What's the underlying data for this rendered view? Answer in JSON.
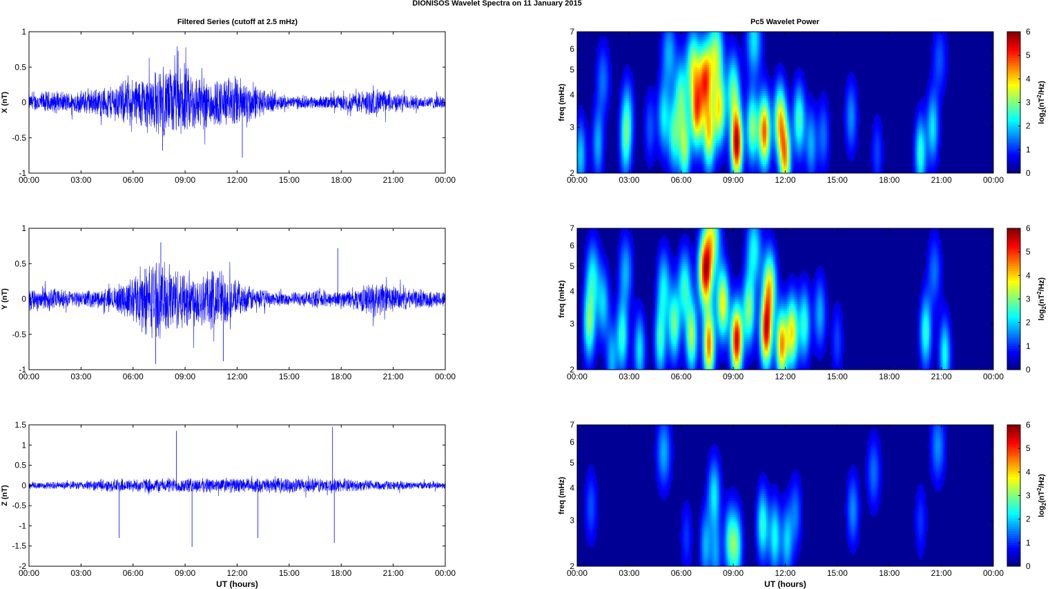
{
  "suptitle": "DIONISOS Wavelet Spectra on 11 January   2015",
  "left_title": "Filtered Series (cutoff at 2.5 mHz)",
  "right_title": "Pc5 Wavelet Power",
  "x_tick_labels": [
    "00:00",
    "03:00",
    "06:00",
    "09:00",
    "12:00",
    "15:00",
    "18:00",
    "21:00",
    "00:00"
  ],
  "xlabel": "UT (hours)",
  "freq_label": "freq (mHz)",
  "colorbar_label": "log2(nT2/Hz)",
  "colorbar_ticks": [
    "0",
    "1",
    "2",
    "3",
    "4",
    "5",
    "6"
  ],
  "chart_data": [
    {
      "type": "line",
      "panel": "X",
      "ylabel": "X (nT)",
      "x_unit": "hours UT",
      "xlim": [
        0,
        24
      ],
      "ylim": [
        -1,
        1
      ],
      "y_ticks": [
        "-1",
        "-0.5",
        "0",
        "0.5",
        "1"
      ],
      "line_color": "#0000ff",
      "envelope": [
        {
          "t": 0,
          "amp": 0.12
        },
        {
          "t": 1,
          "amp": 0.18
        },
        {
          "t": 2,
          "amp": 0.16
        },
        {
          "t": 3,
          "amp": 0.18
        },
        {
          "t": 4,
          "amp": 0.22
        },
        {
          "t": 5,
          "amp": 0.3
        },
        {
          "t": 6,
          "amp": 0.38
        },
        {
          "t": 7,
          "amp": 0.48
        },
        {
          "t": 8,
          "amp": 0.55
        },
        {
          "t": 9,
          "amp": 0.55
        },
        {
          "t": 10,
          "amp": 0.42
        },
        {
          "t": 11,
          "amp": 0.38
        },
        {
          "t": 12,
          "amp": 0.42
        },
        {
          "t": 13,
          "amp": 0.28
        },
        {
          "t": 14,
          "amp": 0.15
        },
        {
          "t": 15,
          "amp": 0.1
        },
        {
          "t": 16,
          "amp": 0.1
        },
        {
          "t": 17,
          "amp": 0.1
        },
        {
          "t": 18,
          "amp": 0.12
        },
        {
          "t": 19,
          "amp": 0.18
        },
        {
          "t": 20,
          "amp": 0.22
        },
        {
          "t": 21,
          "amp": 0.15
        },
        {
          "t": 22,
          "amp": 0.12
        },
        {
          "t": 23,
          "amp": 0.1
        },
        {
          "t": 24,
          "amp": 0.1
        }
      ],
      "peaks": [
        {
          "t": 8.6,
          "y": 0.73
        },
        {
          "t": 12.3,
          "y": -0.78
        },
        {
          "t": 7.7,
          "y": -0.68
        }
      ]
    },
    {
      "type": "line",
      "panel": "Y",
      "ylabel": "Y (nT)",
      "x_unit": "hours UT",
      "xlim": [
        0,
        24
      ],
      "ylim": [
        -1,
        1
      ],
      "y_ticks": [
        "-1",
        "-0.5",
        "0",
        "0.5",
        "1"
      ],
      "line_color": "#0000ff",
      "envelope": [
        {
          "t": 0,
          "amp": 0.18
        },
        {
          "t": 1,
          "amp": 0.2
        },
        {
          "t": 2,
          "amp": 0.14
        },
        {
          "t": 3,
          "amp": 0.12
        },
        {
          "t": 4,
          "amp": 0.14
        },
        {
          "t": 5,
          "amp": 0.2
        },
        {
          "t": 6,
          "amp": 0.35
        },
        {
          "t": 7,
          "amp": 0.6
        },
        {
          "t": 8,
          "amp": 0.55
        },
        {
          "t": 9,
          "amp": 0.45
        },
        {
          "t": 10,
          "amp": 0.45
        },
        {
          "t": 11,
          "amp": 0.5
        },
        {
          "t": 12,
          "amp": 0.25
        },
        {
          "t": 13,
          "amp": 0.18
        },
        {
          "t": 14,
          "amp": 0.12
        },
        {
          "t": 15,
          "amp": 0.1
        },
        {
          "t": 16,
          "amp": 0.12
        },
        {
          "t": 17,
          "amp": 0.14
        },
        {
          "t": 18,
          "amp": 0.12
        },
        {
          "t": 19,
          "amp": 0.18
        },
        {
          "t": 20,
          "amp": 0.28
        },
        {
          "t": 21,
          "amp": 0.2
        },
        {
          "t": 22,
          "amp": 0.15
        },
        {
          "t": 23,
          "amp": 0.14
        },
        {
          "t": 24,
          "amp": 0.12
        }
      ],
      "peaks": [
        {
          "t": 7.3,
          "y": -0.92
        },
        {
          "t": 7.6,
          "y": 0.8
        },
        {
          "t": 11.2,
          "y": -0.88
        },
        {
          "t": 17.8,
          "y": 0.72
        }
      ]
    },
    {
      "type": "line",
      "panel": "Z",
      "ylabel": "Z (nT)",
      "xlabel": "UT (hours)",
      "x_unit": "hours UT",
      "xlim": [
        0,
        24
      ],
      "ylim": [
        -2,
        1.5
      ],
      "y_ticks": [
        "-2",
        "-1.5",
        "-1",
        "-0.5",
        "0",
        "0.5",
        "1",
        "1.5"
      ],
      "line_color": "#0000ff",
      "envelope": [
        {
          "t": 0,
          "amp": 0.12
        },
        {
          "t": 1,
          "amp": 0.1
        },
        {
          "t": 2,
          "amp": 0.1
        },
        {
          "t": 3,
          "amp": 0.12
        },
        {
          "t": 4,
          "amp": 0.15
        },
        {
          "t": 5,
          "amp": 0.18
        },
        {
          "t": 6,
          "amp": 0.18
        },
        {
          "t": 7,
          "amp": 0.2
        },
        {
          "t": 8,
          "amp": 0.2
        },
        {
          "t": 9,
          "amp": 0.2
        },
        {
          "t": 10,
          "amp": 0.2
        },
        {
          "t": 11,
          "amp": 0.2
        },
        {
          "t": 12,
          "amp": 0.2
        },
        {
          "t": 13,
          "amp": 0.2
        },
        {
          "t": 14,
          "amp": 0.2
        },
        {
          "t": 15,
          "amp": 0.2
        },
        {
          "t": 16,
          "amp": 0.2
        },
        {
          "t": 17,
          "amp": 0.2
        },
        {
          "t": 18,
          "amp": 0.18
        },
        {
          "t": 19,
          "amp": 0.15
        },
        {
          "t": 20,
          "amp": 0.15
        },
        {
          "t": 21,
          "amp": 0.12
        },
        {
          "t": 22,
          "amp": 0.1
        },
        {
          "t": 23,
          "amp": 0.1
        },
        {
          "t": 24,
          "amp": 0.1
        }
      ],
      "peaks": [
        {
          "t": 8.5,
          "y": 1.35
        },
        {
          "t": 9.4,
          "y": -1.52
        },
        {
          "t": 17.5,
          "y": 1.45
        },
        {
          "t": 17.6,
          "y": -1.42
        },
        {
          "t": 5.2,
          "y": -1.3
        },
        {
          "t": 13.2,
          "y": -1.3
        }
      ]
    },
    {
      "type": "heatmap",
      "panel": "X power",
      "ylabel": "freq (mHz)",
      "xlim": [
        0,
        24
      ],
      "ylim": [
        2,
        7
      ],
      "y_scale": "log",
      "y_ticks": [
        "2",
        "3",
        "4",
        "5",
        "6",
        "7"
      ],
      "zlim": [
        0,
        6
      ],
      "colormap": "jet",
      "blobs": [
        {
          "t": 0.2,
          "f": 2.35,
          "p": 1.8
        },
        {
          "t": 1.2,
          "f": 2.6,
          "p": 1.6
        },
        {
          "t": 1.5,
          "f": 4.6,
          "p": 1.2
        },
        {
          "t": 2.8,
          "f": 2.6,
          "p": 2.0
        },
        {
          "t": 2.9,
          "f": 3.4,
          "p": 1.6
        },
        {
          "t": 4.2,
          "f": 3.0,
          "p": 1.0
        },
        {
          "t": 5.0,
          "f": 3.3,
          "p": 2.0
        },
        {
          "t": 5.6,
          "f": 2.8,
          "p": 2.4
        },
        {
          "t": 5.3,
          "f": 5.8,
          "p": 1.6
        },
        {
          "t": 6.2,
          "f": 2.5,
          "p": 3.0
        },
        {
          "t": 6.0,
          "f": 4.0,
          "p": 2.4
        },
        {
          "t": 6.9,
          "f": 3.4,
          "p": 4.3
        },
        {
          "t": 6.7,
          "f": 5.2,
          "p": 3.0
        },
        {
          "t": 7.4,
          "f": 4.6,
          "p": 4.5
        },
        {
          "t": 7.6,
          "f": 2.8,
          "p": 3.6
        },
        {
          "t": 8.0,
          "f": 5.8,
          "p": 3.0
        },
        {
          "t": 8.2,
          "f": 3.5,
          "p": 3.6
        },
        {
          "t": 9.2,
          "f": 2.6,
          "p": 5.8
        },
        {
          "t": 9.0,
          "f": 4.2,
          "p": 2.6
        },
        {
          "t": 10.1,
          "f": 3.0,
          "p": 3.0
        },
        {
          "t": 10.2,
          "f": 6.5,
          "p": 2.0
        },
        {
          "t": 10.8,
          "f": 2.9,
          "p": 4.8
        },
        {
          "t": 11.7,
          "f": 3.2,
          "p": 3.8
        },
        {
          "t": 12.0,
          "f": 2.3,
          "p": 4.0
        },
        {
          "t": 12.8,
          "f": 3.2,
          "p": 2.6
        },
        {
          "t": 13.5,
          "f": 2.6,
          "p": 1.6
        },
        {
          "t": 14.2,
          "f": 2.8,
          "p": 1.2
        },
        {
          "t": 15.8,
          "f": 3.3,
          "p": 1.4
        },
        {
          "t": 17.3,
          "f": 2.4,
          "p": 0.9
        },
        {
          "t": 19.8,
          "f": 2.4,
          "p": 2.4
        },
        {
          "t": 20.5,
          "f": 3.0,
          "p": 2.0
        },
        {
          "t": 20.9,
          "f": 5.5,
          "p": 1.0
        }
      ]
    },
    {
      "type": "heatmap",
      "panel": "Y power",
      "ylabel": "freq (mHz)",
      "xlim": [
        0,
        24
      ],
      "ylim": [
        2,
        7
      ],
      "y_scale": "log",
      "y_ticks": [
        "2",
        "3",
        "4",
        "5",
        "6",
        "7"
      ],
      "zlim": [
        0,
        6
      ],
      "colormap": "jet",
      "blobs": [
        {
          "t": 0.7,
          "f": 3.0,
          "p": 2.8
        },
        {
          "t": 0.9,
          "f": 4.6,
          "p": 2.0
        },
        {
          "t": 1.5,
          "f": 3.6,
          "p": 1.8
        },
        {
          "t": 2.0,
          "f": 2.2,
          "p": 1.6
        },
        {
          "t": 2.6,
          "f": 2.7,
          "p": 2.4
        },
        {
          "t": 2.8,
          "f": 4.8,
          "p": 1.6
        },
        {
          "t": 3.6,
          "f": 2.4,
          "p": 2.0
        },
        {
          "t": 4.8,
          "f": 2.6,
          "p": 2.4
        },
        {
          "t": 5.0,
          "f": 4.2,
          "p": 2.0
        },
        {
          "t": 5.6,
          "f": 3.0,
          "p": 2.8
        },
        {
          "t": 6.6,
          "f": 2.7,
          "p": 3.2
        },
        {
          "t": 6.2,
          "f": 4.2,
          "p": 2.4
        },
        {
          "t": 7.4,
          "f": 4.8,
          "p": 5.4
        },
        {
          "t": 7.6,
          "f": 2.5,
          "p": 4.6
        },
        {
          "t": 7.8,
          "f": 6.5,
          "p": 3.0
        },
        {
          "t": 8.4,
          "f": 3.6,
          "p": 3.8
        },
        {
          "t": 9.2,
          "f": 2.6,
          "p": 5.6
        },
        {
          "t": 9.9,
          "f": 3.4,
          "p": 3.0
        },
        {
          "t": 10.2,
          "f": 5.8,
          "p": 2.2
        },
        {
          "t": 10.9,
          "f": 2.8,
          "p": 5.2
        },
        {
          "t": 11.1,
          "f": 4.2,
          "p": 3.6
        },
        {
          "t": 11.8,
          "f": 2.5,
          "p": 4.4
        },
        {
          "t": 12.4,
          "f": 2.8,
          "p": 3.8
        },
        {
          "t": 13.1,
          "f": 3.0,
          "p": 2.4
        },
        {
          "t": 14.0,
          "f": 3.3,
          "p": 1.6
        },
        {
          "t": 15.0,
          "f": 2.6,
          "p": 0.9
        },
        {
          "t": 20.1,
          "f": 2.8,
          "p": 2.4
        },
        {
          "t": 21.2,
          "f": 2.3,
          "p": 2.2
        },
        {
          "t": 20.6,
          "f": 4.8,
          "p": 1.2
        }
      ]
    },
    {
      "type": "heatmap",
      "panel": "Z power",
      "ylabel": "freq (mHz)",
      "xlabel": "UT (hours)",
      "xlim": [
        0,
        24
      ],
      "ylim": [
        2,
        7
      ],
      "y_scale": "log",
      "y_ticks": [
        "2",
        "3",
        "4",
        "5",
        "6",
        "7"
      ],
      "zlim": [
        0,
        6
      ],
      "colormap": "jet",
      "blobs": [
        {
          "t": 0.8,
          "f": 3.4,
          "p": 1.0
        },
        {
          "t": 5.0,
          "f": 5.5,
          "p": 1.6
        },
        {
          "t": 6.3,
          "f": 2.6,
          "p": 0.8
        },
        {
          "t": 7.4,
          "f": 2.4,
          "p": 1.6
        },
        {
          "t": 7.9,
          "f": 3.8,
          "p": 2.0
        },
        {
          "t": 8.0,
          "f": 2.2,
          "p": 1.4
        },
        {
          "t": 8.8,
          "f": 2.5,
          "p": 2.2
        },
        {
          "t": 9.2,
          "f": 2.4,
          "p": 2.3
        },
        {
          "t": 10.7,
          "f": 2.9,
          "p": 2.4
        },
        {
          "t": 11.4,
          "f": 2.6,
          "p": 2.2
        },
        {
          "t": 12.1,
          "f": 2.5,
          "p": 1.8
        },
        {
          "t": 12.6,
          "f": 3.2,
          "p": 1.2
        },
        {
          "t": 15.9,
          "f": 3.3,
          "p": 1.4
        },
        {
          "t": 17.1,
          "f": 4.6,
          "p": 1.2
        },
        {
          "t": 19.8,
          "f": 3.0,
          "p": 0.8
        },
        {
          "t": 20.8,
          "f": 5.8,
          "p": 1.4
        }
      ]
    }
  ]
}
